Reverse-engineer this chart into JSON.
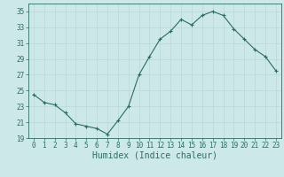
{
  "x": [
    0,
    1,
    2,
    3,
    4,
    5,
    6,
    7,
    8,
    9,
    10,
    11,
    12,
    13,
    14,
    15,
    16,
    17,
    18,
    19,
    20,
    21,
    22,
    23
  ],
  "y": [
    24.5,
    23.5,
    23.2,
    22.2,
    20.8,
    20.5,
    20.2,
    19.5,
    21.2,
    23.0,
    27.0,
    29.3,
    31.5,
    32.5,
    34.0,
    33.3,
    34.5,
    35.0,
    34.5,
    32.8,
    31.5,
    30.2,
    29.3,
    27.5
  ],
  "xlabel": "Humidex (Indice chaleur)",
  "xlim": [
    -0.5,
    23.5
  ],
  "ylim": [
    19,
    36
  ],
  "yticks": [
    19,
    21,
    23,
    25,
    27,
    29,
    31,
    33,
    35
  ],
  "xticks": [
    0,
    1,
    2,
    3,
    4,
    5,
    6,
    7,
    8,
    9,
    10,
    11,
    12,
    13,
    14,
    15,
    16,
    17,
    18,
    19,
    20,
    21,
    22,
    23
  ],
  "line_color": "#2e6b5e",
  "marker_color": "#2e6b5e",
  "bg_color": "#cce8e8",
  "grid_color": "#b8d8d8",
  "axes_color": "#2e6b5e",
  "tick_fontsize": 5.5,
  "xlabel_fontsize": 7.0
}
